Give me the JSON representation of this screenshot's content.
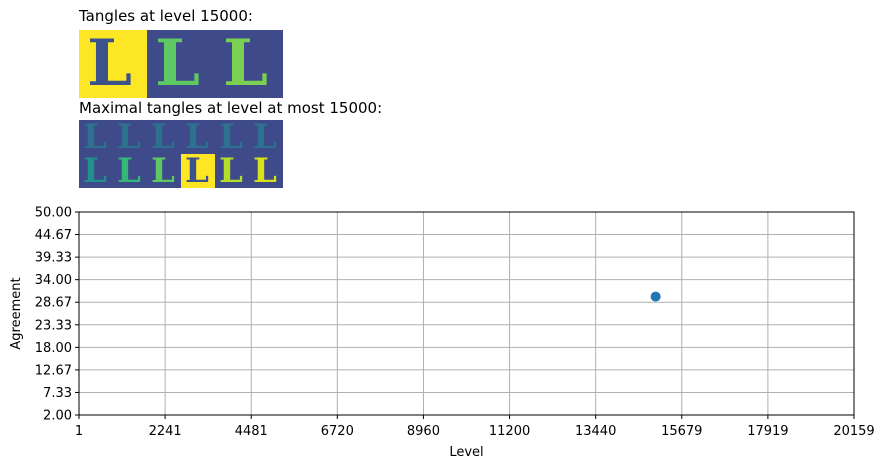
{
  "panel_top": {
    "title": "Tangles at level 15000:",
    "tiles": [
      {
        "bg": "#fde725",
        "fg": "#3b528b"
      },
      {
        "bg": "#3e4a89",
        "fg": "#5ec962"
      },
      {
        "bg": "#3e4a89",
        "fg": "#7ad151"
      }
    ]
  },
  "panel_bottom": {
    "title": "Maximal tangles at level at most 15000:",
    "rows": [
      [
        {
          "bg": "#3e4a89",
          "fg": "#2c728e"
        },
        {
          "bg": "#3e4a89",
          "fg": "#2c728e"
        },
        {
          "bg": "#3e4a89",
          "fg": "#2c728e"
        },
        {
          "bg": "#3e4a89",
          "fg": "#2c728e"
        },
        {
          "bg": "#3e4a89",
          "fg": "#2c728e"
        },
        {
          "bg": "#3e4a89",
          "fg": "#2c728e"
        }
      ],
      [
        {
          "bg": "#3e4a89",
          "fg": "#21918c"
        },
        {
          "bg": "#3e4a89",
          "fg": "#35b779"
        },
        {
          "bg": "#3e4a89",
          "fg": "#5ec962"
        },
        {
          "bg": "#fde725",
          "fg": "#3b528b"
        },
        {
          "bg": "#3e4a89",
          "fg": "#b5de2b"
        },
        {
          "bg": "#3e4a89",
          "fg": "#d8e219"
        }
      ]
    ]
  },
  "chart_data": {
    "type": "scatter",
    "xlabel": "Level",
    "ylabel": "Agreement",
    "xlim": [
      1,
      20159
    ],
    "ylim": [
      2,
      50
    ],
    "xticks": [
      "1",
      "2241",
      "4481",
      "6720",
      "8960",
      "11200",
      "13440",
      "15679",
      "17919",
      "20159"
    ],
    "yticks": [
      "2.00",
      "7.33",
      "12.67",
      "18.00",
      "23.33",
      "28.67",
      "34.00",
      "39.33",
      "44.67",
      "50.00"
    ],
    "grid": true,
    "points": [
      {
        "x": 15000,
        "y": 30
      }
    ],
    "marker_color": "#1f77b4"
  }
}
